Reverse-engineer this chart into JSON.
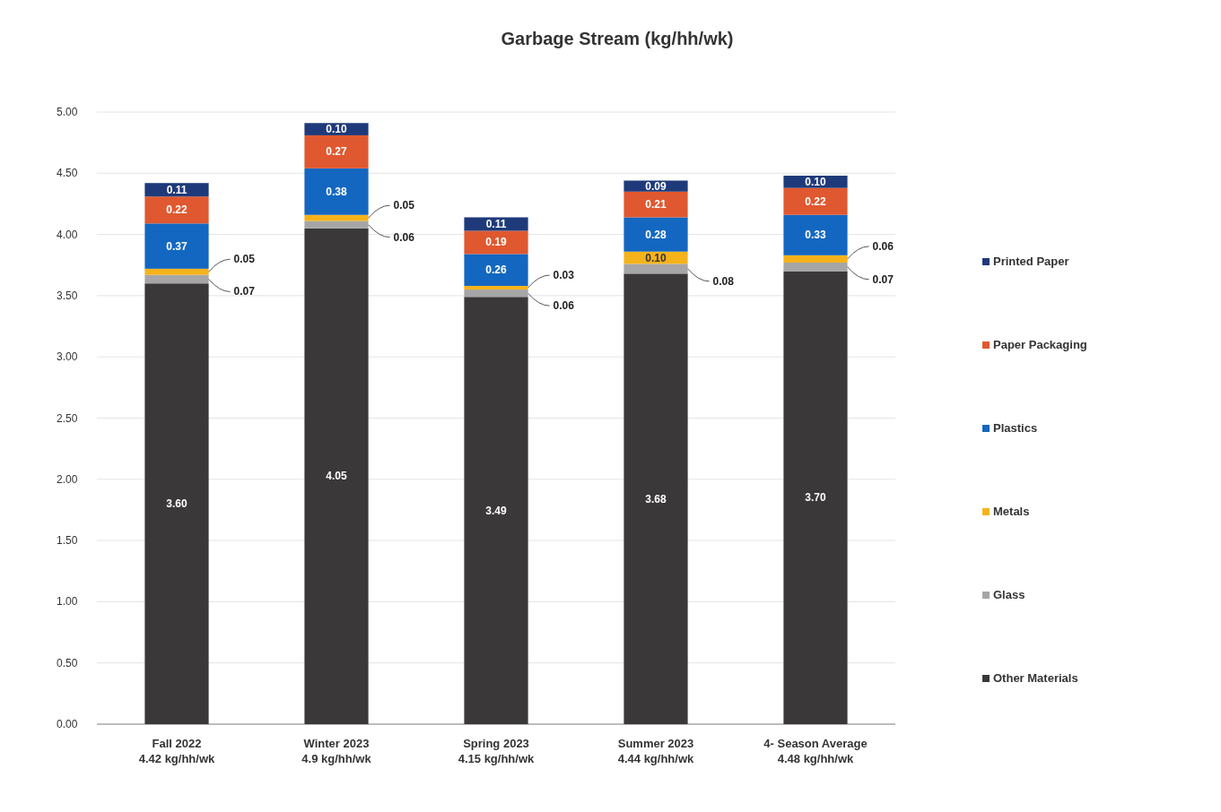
{
  "chart_data": {
    "type": "bar",
    "title": "Garbage Stream (kg/hh/wk)",
    "stacked": true,
    "categories": [
      "Fall 2022\n4.42 kg/hh/wk",
      "Winter 2023\n4.9 kg/hh/wk",
      "Spring 2023\n4.15 kg/hh/wk",
      "Summer 2023\n4.44 kg/hh/wk",
      "4- Season Average\n4.48 kg/hh/wk"
    ],
    "series": [
      {
        "name": "Other Materials",
        "color": "#3a3838",
        "values": [
          3.6,
          4.05,
          3.49,
          3.68,
          3.7
        ],
        "value_labels": [
          "3.60",
          "4.05",
          "3.49",
          "3.68",
          "3.70"
        ]
      },
      {
        "name": "Glass",
        "color": "#a6a6a6",
        "values": [
          0.07,
          0.06,
          0.06,
          0.08,
          0.07
        ],
        "value_labels": [
          "0.07",
          "0.06",
          "0.06",
          "0.08",
          "0.07"
        ]
      },
      {
        "name": "Metals",
        "color": "#f5b31b",
        "values": [
          0.05,
          0.05,
          0.03,
          0.1,
          0.06
        ],
        "value_labels": [
          "0.05",
          "0.05",
          "0.03",
          "0.10",
          "0.06"
        ]
      },
      {
        "name": "Plastics",
        "color": "#1467c0",
        "values": [
          0.37,
          0.38,
          0.26,
          0.28,
          0.33
        ],
        "value_labels": [
          "0.37",
          "0.38",
          "0.26",
          "0.28",
          "0.33"
        ]
      },
      {
        "name": "Paper Packaging",
        "color": "#e0582f",
        "values": [
          0.22,
          0.27,
          0.19,
          0.21,
          0.22
        ],
        "value_labels": [
          "0.22",
          "0.27",
          "0.19",
          "0.21",
          "0.22"
        ]
      },
      {
        "name": "Printed Paper",
        "color": "#1f3a7a",
        "values": [
          0.11,
          0.1,
          0.11,
          0.09,
          0.1
        ],
        "value_labels": [
          "0.11",
          "0.10",
          "0.11",
          "0.09",
          "0.10"
        ]
      }
    ],
    "ylim": [
      0,
      5
    ],
    "yticks": [
      {
        "value": 0,
        "label": "0.00"
      },
      {
        "value": 0.5,
        "label": "0.50"
      },
      {
        "value": 1,
        "label": "1.00"
      },
      {
        "value": 1.5,
        "label": "1.50"
      },
      {
        "value": 2,
        "label": "2.00"
      },
      {
        "value": 2.5,
        "label": "2.50"
      },
      {
        "value": 3,
        "label": "3.00"
      },
      {
        "value": 3.5,
        "label": "3.50"
      },
      {
        "value": 4,
        "label": "4.00"
      },
      {
        "value": 4.5,
        "label": "4.50"
      },
      {
        "value": 5,
        "label": "5.00"
      }
    ],
    "grid": "y",
    "legend": "right"
  }
}
